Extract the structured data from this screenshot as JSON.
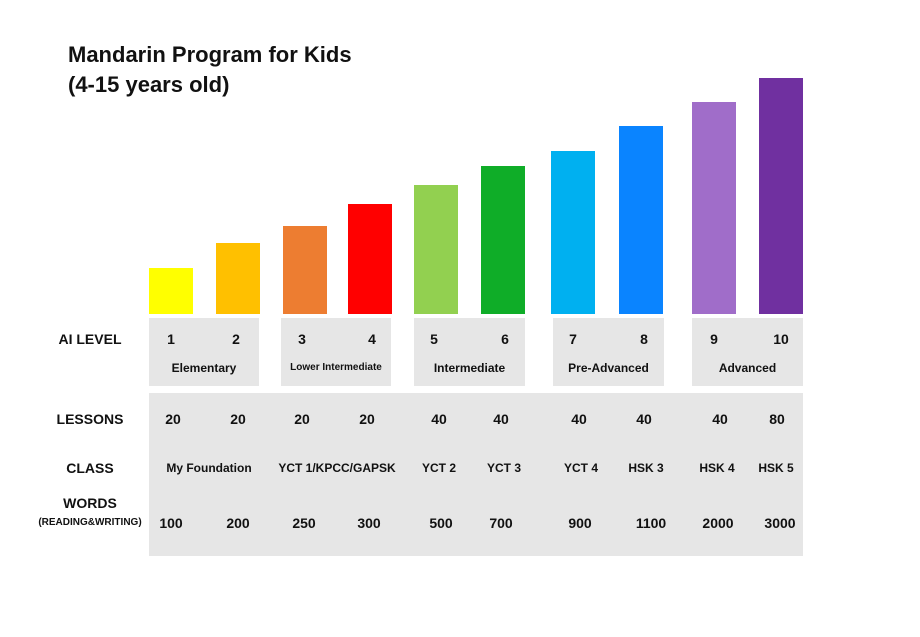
{
  "title_line1": "Mandarin Program for Kids",
  "title_line2": "(4-15 years old)",
  "row_labels": {
    "ai_level": "AI LEVEL",
    "lessons": "LESSONS",
    "class": "CLASS",
    "words": "WORDS",
    "words_sub": "(READING&WRITING)"
  },
  "chart_data": {
    "type": "bar",
    "categories": [
      "1",
      "2",
      "3",
      "4",
      "5",
      "6",
      "7",
      "8",
      "9",
      "10"
    ],
    "values": [
      1,
      2,
      3,
      4,
      5,
      6,
      7,
      8,
      9,
      10
    ],
    "colors": [
      "#ffff00",
      "#ffc000",
      "#ed7d31",
      "#ff0000",
      "#92d050",
      "#0fad28",
      "#00b0f0",
      "#0a84ff",
      "#a06dc9",
      "#7030a0"
    ],
    "groups": [
      "Elementary",
      "Lower Intermediate",
      "Intermediate",
      "Pre-Advanced",
      "Advanced"
    ],
    "lessons": [
      "20",
      "20",
      "20",
      "20",
      "40",
      "40",
      "40",
      "40",
      "40",
      "80"
    ],
    "classes": [
      "My Foundation",
      "YCT 1/KPCC/GAPSK",
      "YCT 2",
      "YCT 3",
      "YCT 4",
      "HSK 3",
      "HSK 4",
      "HSK 5"
    ],
    "words": [
      "100",
      "200",
      "250",
      "300",
      "500",
      "700",
      "900",
      "1100",
      "2000",
      "3000"
    ]
  }
}
